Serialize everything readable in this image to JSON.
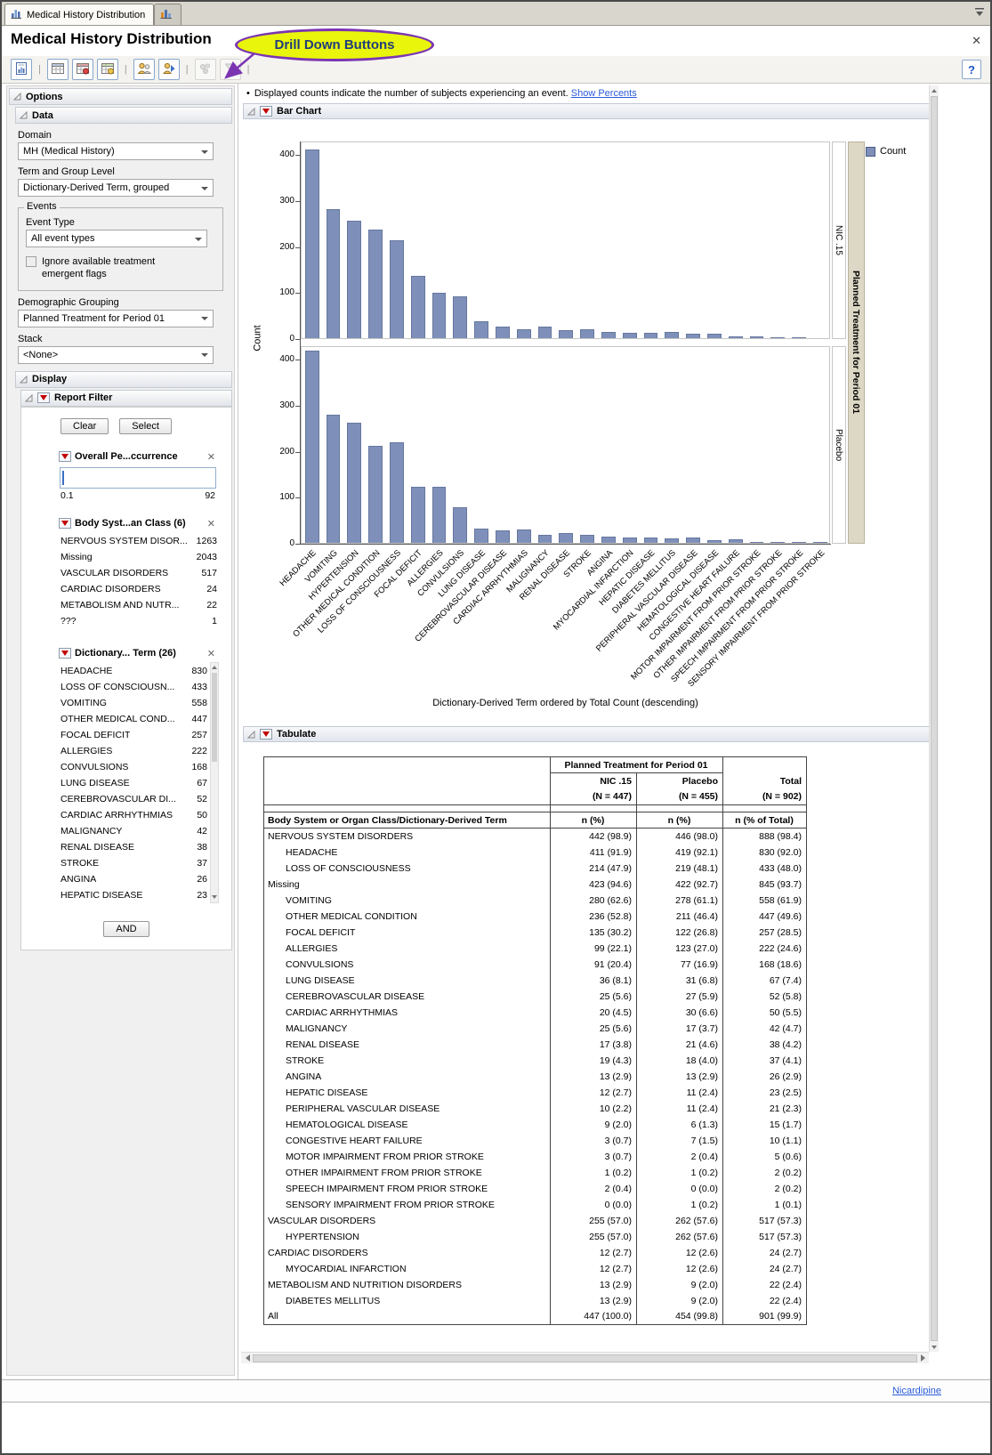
{
  "window": {
    "tab_title": "Medical History Distribution",
    "title": "Medical History Distribution",
    "annotation": "Drill Down Buttons",
    "close_label": "✕",
    "status_link": "Nicardipine"
  },
  "toolbar": {
    "help_label": "?",
    "buttons": [
      {
        "icon": "report",
        "group": 1,
        "enabled": true
      },
      {
        "icon": "data-table",
        "group": 2,
        "enabled": true
      },
      {
        "icon": "subject-table",
        "group": 2,
        "enabled": true
      },
      {
        "icon": "notes-table",
        "group": 2,
        "enabled": true
      },
      {
        "icon": "profile-subjects",
        "group": 3,
        "enabled": true
      },
      {
        "icon": "show-subjects",
        "group": 3,
        "enabled": true
      },
      {
        "icon": "cluster-subjects",
        "group": 4,
        "enabled": false
      },
      {
        "icon": "filter-subjects",
        "group": 4,
        "enabled": false
      }
    ]
  },
  "note": {
    "text": "Displayed counts indicate the number of subjects experiencing an event.",
    "link_label": "Show Percents"
  },
  "outline": {
    "bar_chart": "Bar Chart",
    "tabulate": "Tabulate"
  },
  "colors": {
    "bar": "#7e90ba",
    "highlight": "#e9f50b",
    "annotation_outline": "#7b35b2",
    "link": "#2a5bd7"
  },
  "sidebar": {
    "options_label": "Options",
    "data_section": {
      "label": "Data",
      "domain_label": "Domain",
      "domain_value": "MH (Medical History)",
      "term_label": "Term and Group Level",
      "term_value": "Dictionary-Derived Term, grouped",
      "events_label": "Events",
      "event_type_label": "Event Type",
      "event_type_value": "All event types",
      "ignore_checkbox_label": "Ignore available treatment emergent flags",
      "ignore_checkbox_checked": false,
      "demo_label": "Demographic Grouping",
      "demo_value": "Planned Treatment for Period 01",
      "stack_label": "Stack",
      "stack_value": "<None>"
    },
    "display_section": {
      "label": "Display",
      "report_filter_label": "Report Filter",
      "clear_label": "Clear",
      "select_label": "Select",
      "and_label": "AND",
      "occurrence_filter": {
        "title": "Overall Pe...ccurrence",
        "min": "0.1",
        "max": "92"
      },
      "body_class_filter": {
        "title": "Body Syst...an Class (6)",
        "items": [
          {
            "label": "NERVOUS SYSTEM DISOR...",
            "count": "1263"
          },
          {
            "label": "Missing",
            "count": "2043"
          },
          {
            "label": "VASCULAR DISORDERS",
            "count": "517"
          },
          {
            "label": "CARDIAC DISORDERS",
            "count": "24"
          },
          {
            "label": "METABOLISM AND NUTR...",
            "count": "22"
          },
          {
            "label": "???",
            "count": "1"
          }
        ]
      },
      "term_filter": {
        "title": "Dictionary... Term (26)",
        "items": [
          {
            "label": "HEADACHE",
            "count": "830"
          },
          {
            "label": "LOSS OF CONSCIOUSN...",
            "count": "433"
          },
          {
            "label": "VOMITING",
            "count": "558"
          },
          {
            "label": "OTHER MEDICAL COND...",
            "count": "447"
          },
          {
            "label": "FOCAL DEFICIT",
            "count": "257"
          },
          {
            "label": "ALLERGIES",
            "count": "222"
          },
          {
            "label": "CONVULSIONS",
            "count": "168"
          },
          {
            "label": "LUNG DISEASE",
            "count": "67"
          },
          {
            "label": "CEREBROVASCULAR DI...",
            "count": "52"
          },
          {
            "label": "CARDIAC ARRHYTHMIAS",
            "count": "50"
          },
          {
            "label": "MALIGNANCY",
            "count": "42"
          },
          {
            "label": "RENAL DISEASE",
            "count": "38"
          },
          {
            "label": "STROKE",
            "count": "37"
          },
          {
            "label": "ANGINA",
            "count": "26"
          },
          {
            "label": "HEPATIC DISEASE",
            "count": "23"
          }
        ]
      }
    }
  },
  "chart_data": {
    "type": "bar",
    "title": "Bar Chart",
    "ylabel": "Count",
    "xlabel_caption": "Dictionary-Derived Term ordered by Total Count (descending)",
    "group_label": "Planned Treatment for Period 01",
    "legend": [
      {
        "label": "Count",
        "color": "#7e90ba"
      }
    ],
    "ylim": [
      0,
      430
    ],
    "yticks": [
      0,
      100,
      200,
      300,
      400
    ],
    "grid": false,
    "categories": [
      "HEADACHE",
      "VOMITING",
      "HYPERTENSION",
      "OTHER MEDICAL CONDITION",
      "LOSS OF CONSCIOUSNESS",
      "FOCAL DEFICIT",
      "ALLERGIES",
      "CONVULSIONS",
      "LUNG DISEASE",
      "CEREBROVASCULAR DISEASE",
      "CARDIAC ARRHYTHMIAS",
      "MALIGNANCY",
      "RENAL DISEASE",
      "STROKE",
      "ANGINA",
      "MYOCARDIAL INFARCTION",
      "HEPATIC DISEASE",
      "DIABETES MELLITUS",
      "PERIPHERAL VASCULAR DISEASE",
      "HEMATOLOGICAL DISEASE",
      "CONGESTIVE HEART FAILURE",
      "MOTOR IMPAIRMENT FROM PRIOR STROKE",
      "OTHER IMPAIRMENT FROM PRIOR STROKE",
      "SPEECH IMPAIRMENT FROM PRIOR STROKE",
      "SENSORY IMPAIRMENT FROM PRIOR STROKE"
    ],
    "series": [
      {
        "name": "NIC .15",
        "values": [
          411,
          280,
          255,
          236,
          214,
          135,
          99,
          91,
          36,
          25,
          20,
          25,
          17,
          19,
          13,
          12,
          12,
          13,
          10,
          9,
          3,
          3,
          1,
          2,
          0
        ]
      },
      {
        "name": "Placebo",
        "values": [
          419,
          278,
          262,
          211,
          219,
          122,
          123,
          77,
          31,
          27,
          30,
          17,
          21,
          18,
          13,
          12,
          11,
          9,
          11,
          6,
          7,
          2,
          1,
          2,
          1
        ]
      }
    ]
  },
  "table": {
    "group_header": "Planned Treatment for Period 01",
    "columns": [
      "NIC .15",
      "Placebo",
      "Total"
    ],
    "n_row": [
      "(N = 447)",
      "(N = 455)",
      "(N = 902)"
    ],
    "header_row": [
      "Body System or Organ Class/Dictionary-Derived Term",
      "n (%)",
      "n (%)",
      "n (% of Total)"
    ],
    "rows": [
      {
        "term": "NERVOUS SYSTEM DISORDERS",
        "indent": 0,
        "nic": "442 (98.9)",
        "placebo": "446 (98.0)",
        "total": "888 (98.4)"
      },
      {
        "term": "HEADACHE",
        "indent": 1,
        "nic": "411 (91.9)",
        "placebo": "419 (92.1)",
        "total": "830 (92.0)"
      },
      {
        "term": "LOSS OF CONSCIOUSNESS",
        "indent": 1,
        "nic": "214 (47.9)",
        "placebo": "219 (48.1)",
        "total": "433 (48.0)"
      },
      {
        "term": "Missing",
        "indent": 0,
        "nic": "423 (94.6)",
        "placebo": "422 (92.7)",
        "total": "845 (93.7)"
      },
      {
        "term": "VOMITING",
        "indent": 1,
        "nic": "280 (62.6)",
        "placebo": "278 (61.1)",
        "total": "558 (61.9)"
      },
      {
        "term": "OTHER MEDICAL CONDITION",
        "indent": 1,
        "nic": "236 (52.8)",
        "placebo": "211 (46.4)",
        "total": "447 (49.6)"
      },
      {
        "term": "FOCAL DEFICIT",
        "indent": 1,
        "nic": "135 (30.2)",
        "placebo": "122 (26.8)",
        "total": "257 (28.5)"
      },
      {
        "term": "ALLERGIES",
        "indent": 1,
        "nic": "99 (22.1)",
        "placebo": "123 (27.0)",
        "total": "222 (24.6)"
      },
      {
        "term": "CONVULSIONS",
        "indent": 1,
        "nic": "91 (20.4)",
        "placebo": "77 (16.9)",
        "total": "168 (18.6)"
      },
      {
        "term": "LUNG DISEASE",
        "indent": 1,
        "nic": "36 (8.1)",
        "placebo": "31 (6.8)",
        "total": "67 (7.4)"
      },
      {
        "term": "CEREBROVASCULAR DISEASE",
        "indent": 1,
        "nic": "25 (5.6)",
        "placebo": "27 (5.9)",
        "total": "52 (5.8)"
      },
      {
        "term": "CARDIAC ARRHYTHMIAS",
        "indent": 1,
        "nic": "20 (4.5)",
        "placebo": "30 (6.6)",
        "total": "50 (5.5)"
      },
      {
        "term": "MALIGNANCY",
        "indent": 1,
        "nic": "25 (5.6)",
        "placebo": "17 (3.7)",
        "total": "42 (4.7)"
      },
      {
        "term": "RENAL DISEASE",
        "indent": 1,
        "nic": "17 (3.8)",
        "placebo": "21 (4.6)",
        "total": "38 (4.2)"
      },
      {
        "term": "STROKE",
        "indent": 1,
        "nic": "19 (4.3)",
        "placebo": "18 (4.0)",
        "total": "37 (4.1)"
      },
      {
        "term": "ANGINA",
        "indent": 1,
        "nic": "13 (2.9)",
        "placebo": "13 (2.9)",
        "total": "26 (2.9)"
      },
      {
        "term": "HEPATIC DISEASE",
        "indent": 1,
        "nic": "12 (2.7)",
        "placebo": "11 (2.4)",
        "total": "23 (2.5)"
      },
      {
        "term": "PERIPHERAL VASCULAR DISEASE",
        "indent": 1,
        "nic": "10 (2.2)",
        "placebo": "11 (2.4)",
        "total": "21 (2.3)"
      },
      {
        "term": "HEMATOLOGICAL DISEASE",
        "indent": 1,
        "nic": "9 (2.0)",
        "placebo": "6 (1.3)",
        "total": "15 (1.7)"
      },
      {
        "term": "CONGESTIVE HEART FAILURE",
        "indent": 1,
        "nic": "3 (0.7)",
        "placebo": "7 (1.5)",
        "total": "10 (1.1)"
      },
      {
        "term": "MOTOR IMPAIRMENT FROM PRIOR STROKE",
        "indent": 1,
        "nic": "3 (0.7)",
        "placebo": "2 (0.4)",
        "total": "5 (0.6)"
      },
      {
        "term": "OTHER IMPAIRMENT FROM PRIOR STROKE",
        "indent": 1,
        "nic": "1 (0.2)",
        "placebo": "1 (0.2)",
        "total": "2 (0.2)"
      },
      {
        "term": "SPEECH IMPAIRMENT FROM PRIOR STROKE",
        "indent": 1,
        "nic": "2 (0.4)",
        "placebo": "0 (0.0)",
        "total": "2 (0.2)"
      },
      {
        "term": "SENSORY IMPAIRMENT FROM PRIOR STROKE",
        "indent": 1,
        "nic": "0 (0.0)",
        "placebo": "1 (0.2)",
        "total": "1 (0.1)"
      },
      {
        "term": "VASCULAR DISORDERS",
        "indent": 0,
        "nic": "255 (57.0)",
        "placebo": "262 (57.6)",
        "total": "517 (57.3)"
      },
      {
        "term": "HYPERTENSION",
        "indent": 1,
        "nic": "255 (57.0)",
        "placebo": "262 (57.6)",
        "total": "517 (57.3)"
      },
      {
        "term": "CARDIAC DISORDERS",
        "indent": 0,
        "nic": "12 (2.7)",
        "placebo": "12 (2.6)",
        "total": "24 (2.7)"
      },
      {
        "term": "MYOCARDIAL INFARCTION",
        "indent": 1,
        "nic": "12 (2.7)",
        "placebo": "12 (2.6)",
        "total": "24 (2.7)"
      },
      {
        "term": "METABOLISM AND NUTRITION DISORDERS",
        "indent": 0,
        "nic": "13 (2.9)",
        "placebo": "9 (2.0)",
        "total": "22 (2.4)"
      },
      {
        "term": "DIABETES MELLITUS",
        "indent": 1,
        "nic": "13 (2.9)",
        "placebo": "9 (2.0)",
        "total": "22 (2.4)"
      },
      {
        "term": "All",
        "indent": 0,
        "nic": "447 (100.0)",
        "placebo": "454 (99.8)",
        "total": "901 (99.9)"
      }
    ]
  }
}
